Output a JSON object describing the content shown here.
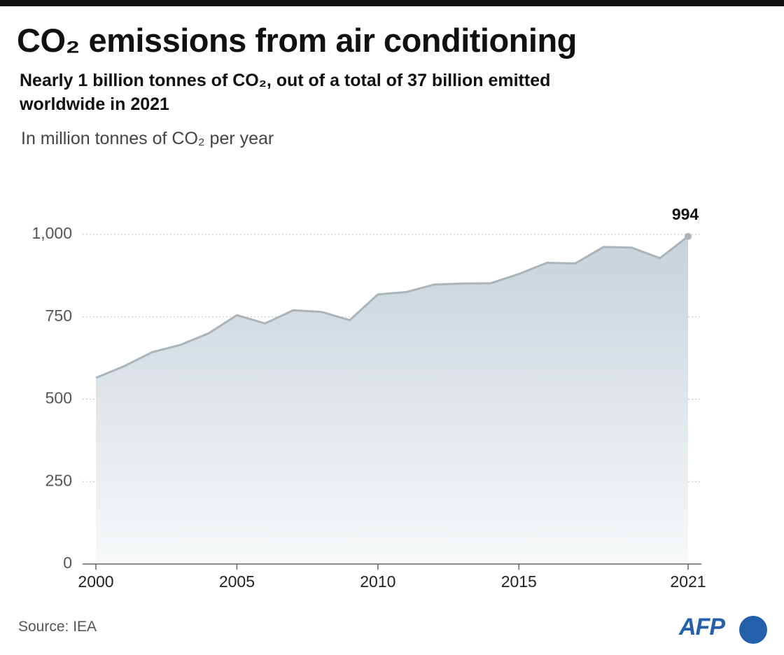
{
  "chart_data": {
    "type": "area",
    "title": "CO₂ emissions from air conditioning",
    "subtitle": "Nearly 1 billion tonnes of CO₂, out of a total of 37 billion emitted worldwide in 2021",
    "y_label": "In million tonnes of CO₂ per year",
    "source": "Source: IEA",
    "logo": "AFP",
    "x": [
      2000,
      2001,
      2002,
      2003,
      2004,
      2005,
      2006,
      2007,
      2008,
      2009,
      2010,
      2011,
      2012,
      2013,
      2014,
      2015,
      2016,
      2017,
      2018,
      2019,
      2020,
      2021
    ],
    "values": [
      565,
      600,
      643,
      665,
      700,
      755,
      730,
      770,
      765,
      740,
      818,
      825,
      848,
      851,
      852,
      880,
      914,
      912,
      962,
      960,
      928,
      994
    ],
    "color": "#a9b4bb",
    "xlim": [
      2000,
      2021
    ],
    "xticks": [
      2000,
      2005,
      2010,
      2015,
      2021
    ],
    "ylim": [
      0,
      1000
    ],
    "yticks": [
      0,
      250,
      500,
      750,
      {
        "value": 1000,
        "label": "1,000"
      }
    ],
    "grid": true
  }
}
